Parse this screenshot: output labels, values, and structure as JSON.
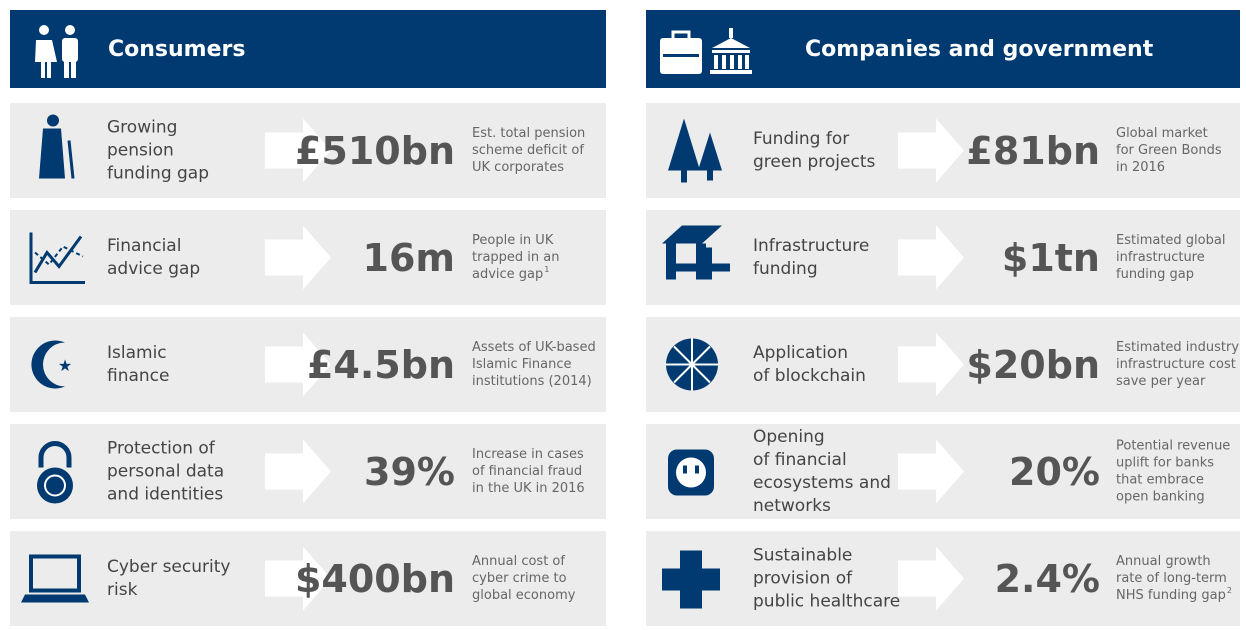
{
  "panels": [
    {
      "title": "Consumers",
      "rows": [
        {
          "label": [
            "Growing",
            "pension",
            "funding gap"
          ],
          "value": "£510bn",
          "description": [
            "Est. total pension",
            "scheme deficit of",
            "UK corporates"
          ]
        },
        {
          "label": [
            "Financial",
            "advice gap"
          ],
          "value": "16m",
          "description": [
            "People in UK",
            "trapped in an",
            "advice gap"
          ],
          "note": "1"
        },
        {
          "label": [
            "Islamic",
            "finance"
          ],
          "value": "£4.5bn",
          "description": [
            "Assets of UK-based",
            "Islamic Finance",
            "institutions (2014)"
          ]
        },
        {
          "label": [
            "Protection of",
            "personal data",
            "and identities"
          ],
          "value": "39%",
          "description": [
            "Increase in cases",
            "of financial fraud",
            "in the UK in 2016"
          ]
        },
        {
          "label": [
            "Cyber security",
            "risk"
          ],
          "value": "$400bn",
          "description": [
            "Annual cost of",
            "cyber crime to",
            "global economy"
          ]
        }
      ]
    },
    {
      "title": "Companies and government",
      "rows": [
        {
          "label": [
            "Funding for",
            "green projects"
          ],
          "value": "£81bn",
          "description": [
            "Global market",
            "for Green Bonds",
            "in 2016"
          ]
        },
        {
          "label": [
            "Infrastructure",
            "funding"
          ],
          "value": "$1tn",
          "description": [
            "Estimated global",
            "infrastructure",
            "funding gap"
          ]
        },
        {
          "label": [
            "Application",
            "of blockchain"
          ],
          "value": "$20bn",
          "description": [
            "Estimated industry",
            "infrastructure cost",
            "save per year"
          ]
        },
        {
          "label": [
            "Opening",
            "of financial",
            "ecosystems and",
            "networks"
          ],
          "value": "20%",
          "description": [
            "Potential revenue",
            "uplift for banks",
            "that embrace",
            "open banking"
          ]
        },
        {
          "label": [
            "Sustainable",
            "provision of",
            "public healthcare"
          ],
          "value": "2.4%",
          "description": [
            "Annual growth",
            "rate of long-term",
            "NHS funding gap"
          ],
          "note": "2"
        }
      ]
    }
  ]
}
